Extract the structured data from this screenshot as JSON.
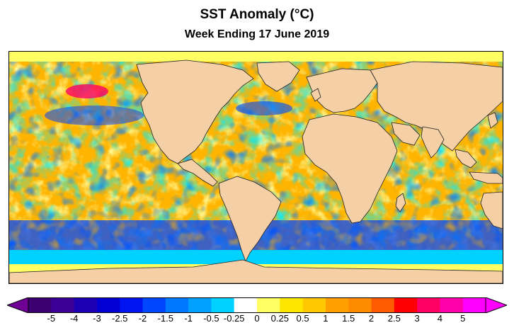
{
  "title": "SST Anomaly (°C)",
  "subtitle": "Week Ending 17 June 2019",
  "colorbar": {
    "labels": [
      "-5",
      "-4",
      "-3",
      "-2.5",
      "-2",
      "-1.5",
      "-1",
      "-0.5",
      "-0.25",
      "0",
      "0.25",
      "0.5",
      "1",
      "1.5",
      "2",
      "2.5",
      "3",
      "4",
      "5"
    ],
    "colors": [
      "#3c0070",
      "#3c0096",
      "#1e00b4",
      "#0000d2",
      "#0014f0",
      "#0046ff",
      "#0078ff",
      "#00a0ff",
      "#00d2ff",
      "#ffffff",
      "#ffff64",
      "#ffe600",
      "#ffc800",
      "#ffa000",
      "#ff8c00",
      "#ff5a00",
      "#ff0000",
      "#ff0064",
      "#ff00aa",
      "#ff00ff"
    ],
    "under_color": "#6e0096",
    "over_color": "#ff00ff"
  },
  "map": {
    "land_color": "#f5cfa6",
    "ocean_base_color": "#ffb400",
    "regions": {
      "arctic_band": "#ffff64",
      "southern_ocean_band": "#0046ff",
      "antarctic_band": "#00d2ff",
      "antarctic_coast": "#ffff64"
    }
  }
}
